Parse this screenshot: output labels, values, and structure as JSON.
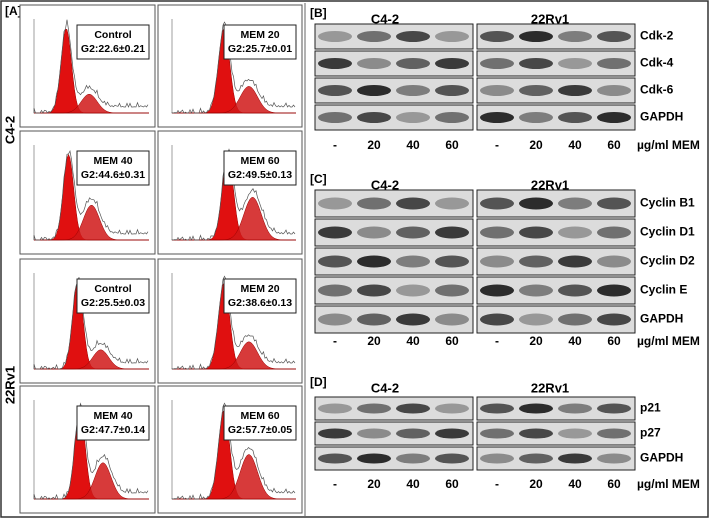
{
  "panel_a": {
    "label": "[A]",
    "row_labels": [
      "C4-2",
      "22Rv1"
    ],
    "plots": [
      {
        "title": "Control",
        "g2": "G2:22.6±0.21"
      },
      {
        "title": "MEM 20",
        "g2": "G2:25.7±0.01"
      },
      {
        "title": "MEM 40",
        "g2": "G2:44.6±0.31"
      },
      {
        "title": "MEM 60",
        "g2": "G2:49.5±0.13"
      },
      {
        "title": "Control",
        "g2": "G2:25.5±0.03"
      },
      {
        "title": "MEM 20",
        "g2": "G2:38.6±0.13"
      },
      {
        "title": "MEM 40",
        "g2": "G2:47.7±0.14"
      },
      {
        "title": "MEM 60",
        "g2": "G2:57.7±0.05"
      }
    ]
  },
  "panel_b": {
    "label": "[B]",
    "cell_lines": [
      "C4-2",
      "22Rv1"
    ],
    "proteins": [
      "Cdk-2",
      "Cdk-4",
      "Cdk-6",
      "GAPDH"
    ],
    "lanes": [
      "-",
      "20",
      "40",
      "60",
      "-",
      "20",
      "40",
      "60"
    ],
    "unit": "µg/ml MEM"
  },
  "panel_c": {
    "label": "[C]",
    "cell_lines": [
      "C4-2",
      "22Rv1"
    ],
    "proteins": [
      "Cyclin B1",
      "Cyclin D1",
      "Cyclin D2",
      "Cyclin E",
      "GAPDH"
    ],
    "lanes": [
      "-",
      "20",
      "40",
      "60",
      "-",
      "20",
      "40",
      "60"
    ],
    "unit": "µg/ml MEM"
  },
  "panel_d": {
    "label": "[D]",
    "cell_lines": [
      "C4-2",
      "22Rv1"
    ],
    "proteins": [
      "p21",
      "p27",
      "GAPDH"
    ],
    "lanes": [
      "-",
      "20",
      "40",
      "60",
      "-",
      "20",
      "40",
      "60"
    ],
    "unit": "µg/ml MEM"
  }
}
